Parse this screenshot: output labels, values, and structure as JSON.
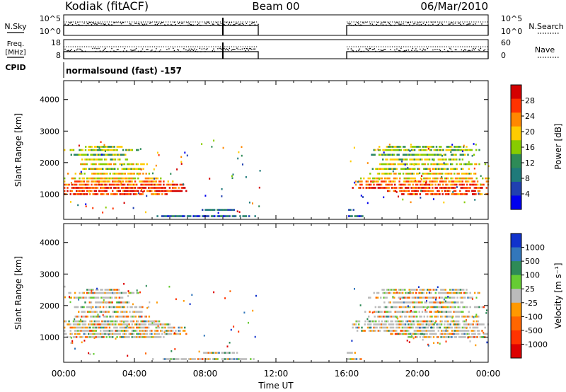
{
  "header": {
    "station": "Kodiak (fitACF)",
    "beam": "Beam 00",
    "date": "06/Mar/2010"
  },
  "panels": {
    "nsky": {
      "left_label": "N.Sky",
      "left_ticks": [
        "10^5",
        "10^0"
      ],
      "right_label": "N.Search",
      "right_ticks": [
        "10^5",
        "10^0"
      ]
    },
    "freq": {
      "left_label_1": "Freq.",
      "left_label_2": "[MHz]",
      "left_ticks": [
        "18",
        "8"
      ],
      "right_label": "Nave",
      "right_ticks": [
        "60",
        "0"
      ]
    },
    "cpid": {
      "label": "CPID",
      "text": "normalsound (fast) -157"
    }
  },
  "power_colorbar": {
    "label": "Power [dB]",
    "ticks": [
      "28",
      "24",
      "20",
      "16",
      "12",
      "8",
      "4"
    ],
    "colors": [
      "#d40000",
      "#ff3300",
      "#ff8800",
      "#ffcc00",
      "#88cc00",
      "#2e8b57",
      "#1f7a7a",
      "#2040b0",
      "#0000ee"
    ]
  },
  "velocity_colorbar": {
    "label": "Velocity [m s⁻¹]",
    "ticks": [
      "1000",
      "500",
      "100",
      "25",
      "-25",
      "-100",
      "-500",
      "-1000"
    ],
    "colors": [
      "#1133cc",
      "#3377bb",
      "#2e8b57",
      "#66cc33",
      "#bbbbbb",
      "#ff9900",
      "#ff6600",
      "#ff3300",
      "#dd0000"
    ]
  },
  "x_axis": {
    "title": "Time UT",
    "ticks": [
      "00:00",
      "04:00",
      "08:00",
      "12:00",
      "16:00",
      "20:00",
      "00:00"
    ]
  },
  "chart_data": [
    {
      "type": "heatmap",
      "title": "Power",
      "ylabel": "Slant Range [km]",
      "xlabel": "Time UT",
      "y_ticks": [
        1000,
        2000,
        3000,
        4000
      ],
      "ylim": [
        200,
        4600
      ],
      "xlim": [
        0,
        24
      ],
      "colorbar": "Power [dB]",
      "bands": [
        {
          "range_km": 1000,
          "t0": 0.0,
          "t1": 5.9,
          "t2": 19.0,
          "t3": 24.0,
          "level": 0.85
        },
        {
          "range_km": 1100,
          "t0": 0.0,
          "t1": 7.2,
          "t2": 18.2,
          "t3": 24.0,
          "level": 0.9
        },
        {
          "range_km": 1200,
          "t0": 0.0,
          "t1": 6.9,
          "t2": 16.3,
          "t3": 24.0,
          "level": 0.9
        },
        {
          "range_km": 1300,
          "t0": 0.0,
          "t1": 6.8,
          "t2": 16.3,
          "t3": 24.0,
          "level": 0.85
        },
        {
          "range_km": 1400,
          "t0": 0.0,
          "t1": 6.2,
          "t2": 16.3,
          "t3": 24.0,
          "level": 0.75
        },
        {
          "range_km": 1500,
          "t0": 0.0,
          "t1": 5.5,
          "t2": 16.5,
          "t3": 24.0,
          "level": 0.65
        },
        {
          "range_km": 1650,
          "t0": 0.2,
          "t1": 4.9,
          "t2": 17.2,
          "t3": 23.5,
          "level": 0.6
        },
        {
          "range_km": 1800,
          "t0": 0.8,
          "t1": 4.5,
          "t2": 17.0,
          "t3": 23.0,
          "level": 0.55
        },
        {
          "range_km": 1950,
          "t0": 0.5,
          "t1": 4.8,
          "t2": 17.5,
          "t3": 23.8,
          "level": 0.6
        },
        {
          "range_km": 2100,
          "t0": 1.0,
          "t1": 3.8,
          "t2": 18.0,
          "t3": 22.6,
          "level": 0.5
        },
        {
          "range_km": 2250,
          "t0": 0.3,
          "t1": 3.5,
          "t2": 17.2,
          "t3": 23.2,
          "level": 0.45
        },
        {
          "range_km": 2400,
          "t0": 0.0,
          "t1": 4.2,
          "t2": 17.5,
          "t3": 23.5,
          "level": 0.5
        },
        {
          "range_km": 2500,
          "t0": 1.2,
          "t1": 3.3,
          "t2": 17.8,
          "t3": 22.8,
          "level": 0.5
        },
        {
          "range_km": 300,
          "t0": 5.0,
          "t1": 10.8,
          "t2": 16.0,
          "t3": 16.9,
          "level": 0.2
        },
        {
          "range_km": 500,
          "t0": 7.8,
          "t1": 9.8,
          "t2": 16.0,
          "t3": 16.5,
          "level": 0.25
        }
      ]
    },
    {
      "type": "heatmap",
      "title": "Velocity",
      "ylabel": "Slant Range [km]",
      "xlabel": "Time UT",
      "y_ticks": [
        1000,
        2000,
        3000,
        4000
      ],
      "ylim": [
        200,
        4600
      ],
      "xlim": [
        0,
        24
      ],
      "colorbar": "Velocity [m s⁻¹]",
      "bands": [
        {
          "range_km": 1000,
          "t0": 0.0,
          "t1": 5.9,
          "t2": 19.0,
          "t3": 24.0,
          "level": 0.45
        },
        {
          "range_km": 1100,
          "t0": 0.0,
          "t1": 7.2,
          "t2": 18.2,
          "t3": 24.0,
          "level": 0.55
        },
        {
          "range_km": 1200,
          "t0": 0.0,
          "t1": 6.9,
          "t2": 16.3,
          "t3": 24.0,
          "level": 0.6
        },
        {
          "range_km": 1300,
          "t0": 0.0,
          "t1": 6.8,
          "t2": 16.3,
          "t3": 24.0,
          "level": 0.55
        },
        {
          "range_km": 1400,
          "t0": 0.0,
          "t1": 6.2,
          "t2": 16.3,
          "t3": 24.0,
          "level": 0.5
        },
        {
          "range_km": 1500,
          "t0": 0.0,
          "t1": 5.5,
          "t2": 16.5,
          "t3": 24.0,
          "level": 0.5
        },
        {
          "range_km": 1650,
          "t0": 0.2,
          "t1": 4.9,
          "t2": 17.2,
          "t3": 23.5,
          "level": 0.5
        },
        {
          "range_km": 1800,
          "t0": 0.8,
          "t1": 4.5,
          "t2": 17.0,
          "t3": 23.0,
          "level": 0.5
        },
        {
          "range_km": 1950,
          "t0": 0.5,
          "t1": 4.8,
          "t2": 17.5,
          "t3": 23.8,
          "level": 0.5
        },
        {
          "range_km": 2100,
          "t0": 1.0,
          "t1": 3.8,
          "t2": 18.0,
          "t3": 22.6,
          "level": 0.5
        },
        {
          "range_km": 2250,
          "t0": 0.3,
          "t1": 3.5,
          "t2": 17.2,
          "t3": 23.2,
          "level": 0.5
        },
        {
          "range_km": 2400,
          "t0": 0.0,
          "t1": 4.2,
          "t2": 17.5,
          "t3": 23.5,
          "level": 0.5
        },
        {
          "range_km": 2500,
          "t0": 1.2,
          "t1": 3.3,
          "t2": 17.8,
          "t3": 22.8,
          "level": 0.5
        },
        {
          "range_km": 300,
          "t0": 5.0,
          "t1": 10.8,
          "t2": 16.0,
          "t3": 16.9,
          "level": 0.5
        },
        {
          "range_km": 500,
          "t0": 7.8,
          "t1": 9.8,
          "t2": 16.0,
          "t3": 16.5,
          "level": 0.5
        }
      ]
    }
  ]
}
